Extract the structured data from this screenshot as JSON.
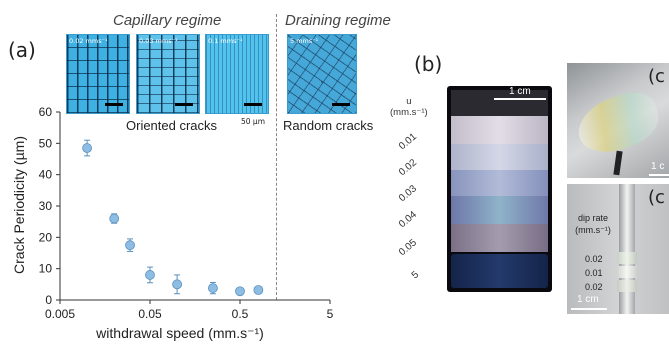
{
  "figure": {
    "panel_a_label": "(a)",
    "panel_b_label": "(b)",
    "panel_c_label": "(c",
    "panel_c2_label": "(c"
  },
  "regimes": {
    "capillary": "Capillary regime",
    "draining": "Draining regime"
  },
  "micrographs": [
    {
      "speed": "0.02 mms⁻¹",
      "pattern": "oriented-cracks"
    },
    {
      "speed": "0.03 mms⁻¹",
      "pattern": "oriented-cracks"
    },
    {
      "speed": "0.1 mms⁻¹",
      "pattern": "oriented-cracks"
    },
    {
      "speed": "5 mms⁻¹",
      "pattern": "random-cracks"
    }
  ],
  "micrograph_captions": {
    "oriented": "Oriented cracks",
    "random": "Random cracks",
    "scale": "50 µm"
  },
  "chart_data": {
    "type": "scatter",
    "title": "",
    "xlabel": "withdrawal speed (mm.s⁻¹)",
    "ylabel": "Crack Periodicity (µm)",
    "x_scale": "log",
    "xlim": [
      0.005,
      5
    ],
    "ylim": [
      0,
      60
    ],
    "x_ticks": [
      0.005,
      0.05,
      0.5,
      5
    ],
    "x_tick_labels": [
      "0.005",
      "0.05",
      "0.5",
      "5"
    ],
    "y_ticks": [
      0,
      10,
      20,
      30,
      40,
      50,
      60
    ],
    "y_tick_labels": [
      "0",
      "10",
      "20",
      "30",
      "40",
      "50",
      "60"
    ],
    "marker_color": "#8dbde3",
    "grid": false,
    "divider_x": 0.9,
    "points": [
      {
        "x": 0.01,
        "y": 48.5,
        "err": 2.5
      },
      {
        "x": 0.02,
        "y": 26,
        "err": 1.5
      },
      {
        "x": 0.03,
        "y": 17.5,
        "err": 2
      },
      {
        "x": 0.05,
        "y": 8,
        "err": 2.5
      },
      {
        "x": 0.1,
        "y": 5,
        "err": 3
      },
      {
        "x": 0.25,
        "y": 3.8,
        "err": 1.8
      },
      {
        "x": 0.5,
        "y": 2.8,
        "err": 0.7
      },
      {
        "x": 0.8,
        "y": 3.2,
        "err": 0.5
      }
    ]
  },
  "panel_b": {
    "scale_label": "1 cm",
    "axis_title_u": "u",
    "axis_unit": "(mm.s⁻¹)",
    "speed_ticks": [
      "0.01",
      "0.02",
      "0.03",
      "0.04",
      "0.05",
      "5"
    ],
    "stripe_colors": [
      "#2a2a30",
      "#c9c3cf",
      "#b9bfd6",
      "#9aa7c8",
      "#7f86b2",
      "#8a7f95",
      "#1c2c52"
    ]
  },
  "panel_c": {
    "scale_label_top": "1 c",
    "dip_rate_title": "dip rate",
    "dip_rate_unit": "(mm.s⁻¹)",
    "dip_rates": [
      "0.02",
      "0.01",
      "0.02"
    ],
    "scale_label_bottom": "1 cm"
  }
}
